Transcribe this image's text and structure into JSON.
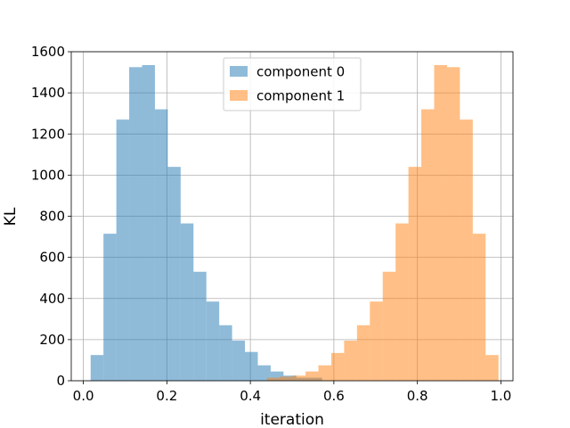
{
  "chart_data": {
    "type": "bar",
    "xlabel": "iteration",
    "ylabel": "KL",
    "xlim": [
      -0.029,
      1.029
    ],
    "ylim": [
      0,
      1600
    ],
    "xticks": [
      0.0,
      0.2,
      0.4,
      0.6,
      0.8,
      1.0
    ],
    "xtick_labels": [
      "0.0",
      "0.2",
      "0.4",
      "0.6",
      "0.8",
      "1.0"
    ],
    "yticks": [
      0,
      200,
      400,
      600,
      800,
      1000,
      1200,
      1400,
      1600
    ],
    "ytick_labels": [
      "0",
      "200",
      "400",
      "600",
      "800",
      "1000",
      "1200",
      "1400",
      "1600"
    ],
    "grid": true,
    "legend_position": "top-center",
    "bin_width": 0.0308,
    "series": [
      {
        "name": "component 0",
        "color": "#1f77b4",
        "opacity": 0.5,
        "bin_starts": [
          0.0174,
          0.0482,
          0.079,
          0.1098,
          0.1406,
          0.1714,
          0.2022,
          0.233,
          0.2638,
          0.2946,
          0.3254,
          0.3562,
          0.387,
          0.4178,
          0.4486,
          0.4794,
          0.5102,
          0.541
        ],
        "values": [
          125,
          715,
          1270,
          1525,
          1535,
          1320,
          1040,
          765,
          530,
          385,
          270,
          195,
          140,
          75,
          45,
          25,
          15,
          15
        ]
      },
      {
        "name": "component 1",
        "color": "#ff7f0e",
        "opacity": 0.5,
        "bin_starts": [
          0.4398,
          0.4706,
          0.5014,
          0.5322,
          0.563,
          0.5938,
          0.6246,
          0.6554,
          0.6862,
          0.717,
          0.7478,
          0.7786,
          0.8094,
          0.8402,
          0.871,
          0.9018,
          0.9326,
          0.9634
        ],
        "values": [
          15,
          20,
          25,
          45,
          75,
          135,
          195,
          270,
          385,
          530,
          765,
          1040,
          1320,
          1535,
          1525,
          1270,
          715,
          125
        ]
      }
    ]
  }
}
